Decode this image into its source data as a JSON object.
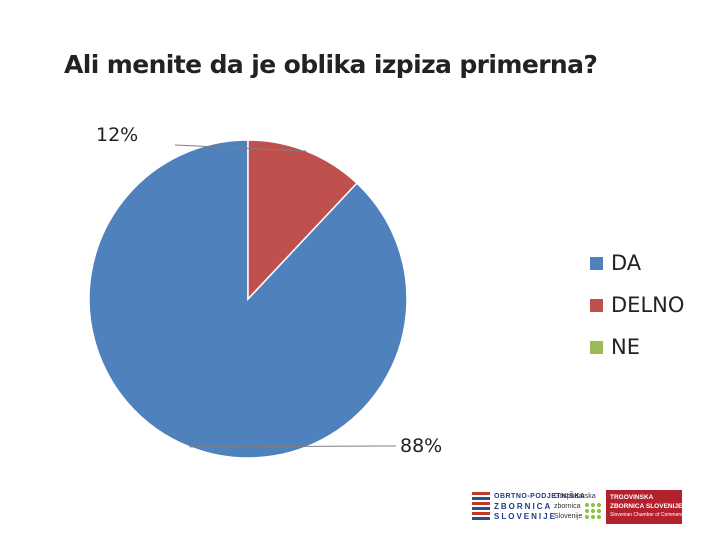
{
  "title": "Ali menite da je oblika izpiza primerna?",
  "chart_data": {
    "type": "pie",
    "title": "Ali menite da je oblika izpiza primerna?",
    "slices": [
      {
        "label": "DA",
        "value": 88,
        "color": "#4f81bd",
        "data_label": "88%"
      },
      {
        "label": "DELNO",
        "value": 12,
        "color": "#c0504d",
        "data_label": "12%"
      },
      {
        "label": "NE",
        "value": 0,
        "color": "#9bbb59",
        "data_label": ""
      }
    ],
    "legend": {
      "position": "right"
    }
  },
  "legend_items": [
    {
      "label": "DA",
      "color": "#4f81bd"
    },
    {
      "label": "DELNO",
      "color": "#c0504d"
    },
    {
      "label": "NE",
      "color": "#9bbb59"
    }
  ],
  "logos": {
    "opz": {
      "line1": "OBRTNO-PODJETNIŠKA",
      "line2": "ZBORNICA",
      "line3": "SLOVENIJE"
    },
    "gzs": {
      "line1": "Gospodarska",
      "line2": "zbornica",
      "line3": "Slovenije"
    },
    "tzs": {
      "line1": "TRGOVINSKA",
      "line2": "ZBORNICA SLOVENIJE",
      "line3": "Slovenian Chamber of Commerce"
    }
  }
}
